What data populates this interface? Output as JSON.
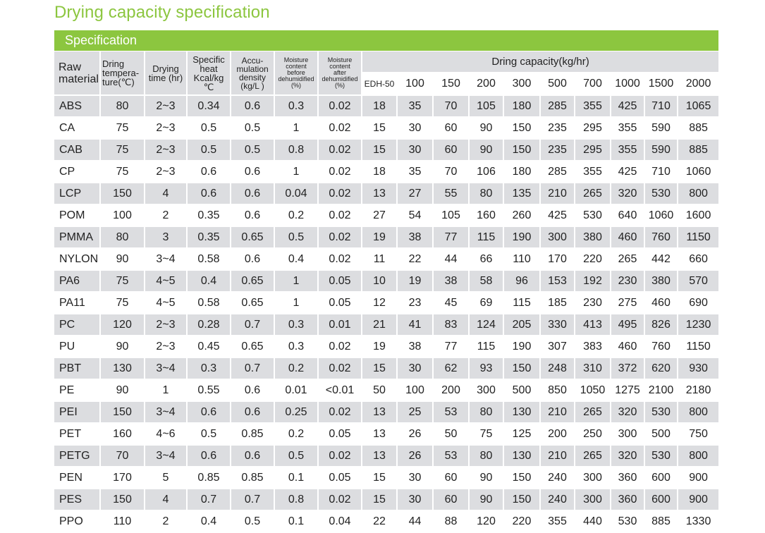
{
  "page_title": "Drying capacity specification",
  "section_title": "Specification",
  "headers": {
    "raw_material": [
      "Raw",
      "material"
    ],
    "dring_temperature": [
      "Dring",
      "tempera-",
      "ture(℃)"
    ],
    "drying_time": [
      "Drying",
      "time (hr)"
    ],
    "specific_heat": [
      "Specific",
      "heat",
      "Kcal/kg",
      "℃"
    ],
    "accumulation_density": [
      "Accu-",
      "mulation",
      "density",
      "(kg/L )"
    ],
    "moisture_before": [
      "Moisture",
      "content",
      "before",
      "dehumidified",
      "(%)"
    ],
    "moisture_after": [
      "Moisture",
      "content",
      "after",
      "dehumidified",
      "(%)"
    ],
    "dring_capacity": "Dring capacity(kg/hr)",
    "capacity_models": [
      "EDH-50",
      "100",
      "150",
      "200",
      "300",
      "500",
      "700",
      "1000",
      "1500",
      "2000"
    ]
  },
  "rows": [
    [
      "ABS",
      "80",
      "2~3",
      "0.34",
      "0.6",
      "0.3",
      "0.02",
      "18",
      "35",
      "70",
      "105",
      "180",
      "285",
      "355",
      "425",
      "710",
      "1065"
    ],
    [
      "CA",
      "75",
      "2~3",
      "0.5",
      "0.5",
      "1",
      "0.02",
      "15",
      "30",
      "60",
      "90",
      "150",
      "235",
      "295",
      "355",
      "590",
      "885"
    ],
    [
      "CAB",
      "75",
      "2~3",
      "0.5",
      "0.5",
      "0.8",
      "0.02",
      "15",
      "30",
      "60",
      "90",
      "150",
      "235",
      "295",
      "355",
      "590",
      "885"
    ],
    [
      "CP",
      "75",
      "2~3",
      "0.6",
      "0.6",
      "1",
      "0.02",
      "18",
      "35",
      "70",
      "106",
      "180",
      "285",
      "355",
      "425",
      "710",
      "1060"
    ],
    [
      "LCP",
      "150",
      "4",
      "0.6",
      "0.6",
      "0.04",
      "0.02",
      "13",
      "27",
      "55",
      "80",
      "135",
      "210",
      "265",
      "320",
      "530",
      "800"
    ],
    [
      "POM",
      "100",
      "2",
      "0.35",
      "0.6",
      "0.2",
      "0.02",
      "27",
      "54",
      "105",
      "160",
      "260",
      "425",
      "530",
      "640",
      "1060",
      "1600"
    ],
    [
      "PMMA",
      "80",
      "3",
      "0.35",
      "0.65",
      "0.5",
      "0.02",
      "19",
      "38",
      "77",
      "115",
      "190",
      "300",
      "380",
      "460",
      "760",
      "1150"
    ],
    [
      "NYLON",
      "90",
      "3~4",
      "0.58",
      "0.6",
      "0.4",
      "0.02",
      "11",
      "22",
      "44",
      "66",
      "110",
      "170",
      "220",
      "265",
      "442",
      "660"
    ],
    [
      "PA6",
      "75",
      "4~5",
      "0.4",
      "0.65",
      "1",
      "0.05",
      "10",
      "19",
      "38",
      "58",
      "96",
      "153",
      "192",
      "230",
      "380",
      "570"
    ],
    [
      "PA11",
      "75",
      "4~5",
      "0.58",
      "0.65",
      "1",
      "0.05",
      "12",
      "23",
      "45",
      "69",
      "115",
      "185",
      "230",
      "275",
      "460",
      "690"
    ],
    [
      "PC",
      "120",
      "2~3",
      "0.28",
      "0.7",
      "0.3",
      "0.01",
      "21",
      "41",
      "83",
      "124",
      "205",
      "330",
      "413",
      "495",
      "826",
      "1230"
    ],
    [
      "PU",
      "90",
      "2~3",
      "0.45",
      "0.65",
      "0.3",
      "0.02",
      "19",
      "38",
      "77",
      "115",
      "190",
      "307",
      "383",
      "460",
      "760",
      "1150"
    ],
    [
      "PBT",
      "130",
      "3~4",
      "0.3",
      "0.7",
      "0.2",
      "0.02",
      "15",
      "30",
      "62",
      "93",
      "150",
      "248",
      "310",
      "372",
      "620",
      "930"
    ],
    [
      "PE",
      "90",
      "1",
      "0.55",
      "0.6",
      "0.01",
      "<0.01",
      "50",
      "100",
      "200",
      "300",
      "500",
      "850",
      "1050",
      "1275",
      "2100",
      "2180"
    ],
    [
      "PEI",
      "150",
      "3~4",
      "0.6",
      "0.6",
      "0.25",
      "0.02",
      "13",
      "25",
      "53",
      "80",
      "130",
      "210",
      "265",
      "320",
      "530",
      "800"
    ],
    [
      "PET",
      "160",
      "4~6",
      "0.5",
      "0.85",
      "0.2",
      "0.05",
      "13",
      "26",
      "50",
      "75",
      "125",
      "200",
      "250",
      "300",
      "500",
      "750"
    ],
    [
      "PETG",
      "70",
      "3~4",
      "0.6",
      "0.6",
      "0.5",
      "0.02",
      "13",
      "26",
      "53",
      "80",
      "130",
      "210",
      "265",
      "320",
      "530",
      "800"
    ],
    [
      "PEN",
      "170",
      "5",
      "0.85",
      "0.85",
      "0.1",
      "0.05",
      "15",
      "30",
      "60",
      "90",
      "150",
      "240",
      "300",
      "360",
      "600",
      "900"
    ],
    [
      "PES",
      "150",
      "4",
      "0.7",
      "0.7",
      "0.8",
      "0.02",
      "15",
      "30",
      "60",
      "90",
      "150",
      "240",
      "300",
      "360",
      "600",
      "900"
    ],
    [
      "PPO",
      "110",
      "2",
      "0.4",
      "0.5",
      "0.1",
      "0.04",
      "22",
      "44",
      "88",
      "120",
      "220",
      "355",
      "440",
      "530",
      "885",
      "1330"
    ]
  ],
  "colors": {
    "accent_green": "#8cc63f",
    "row_gray": "#dcdde0",
    "row_white": "#ffffff"
  }
}
